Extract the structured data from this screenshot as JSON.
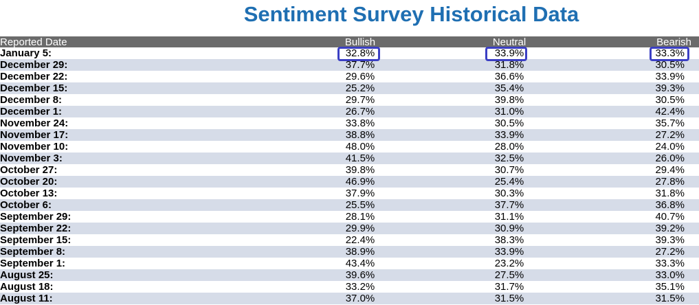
{
  "title": "Sentiment Survey Historical Data",
  "colors": {
    "title": "#1f6fb2",
    "header_bg": "#6b6b6b",
    "row_alt": "#d6dce8",
    "highlight": "#3b3fc4"
  },
  "table": {
    "headers": {
      "date": "Reported Date",
      "bullish": "Bullish",
      "neutral": "Neutral",
      "bearish": "Bearish"
    },
    "rows": [
      {
        "date": "January 5:",
        "bullish": "32.8%",
        "neutral": "33.9%",
        "bearish": "33.3%"
      },
      {
        "date": "December 29:",
        "bullish": "37.7%",
        "neutral": "31.8%",
        "bearish": "30.5%"
      },
      {
        "date": "December 22:",
        "bullish": "29.6%",
        "neutral": "36.6%",
        "bearish": "33.9%"
      },
      {
        "date": "December 15:",
        "bullish": "25.2%",
        "neutral": "35.4%",
        "bearish": "39.3%"
      },
      {
        "date": "December 8:",
        "bullish": "29.7%",
        "neutral": "39.8%",
        "bearish": "30.5%"
      },
      {
        "date": "December 1:",
        "bullish": "26.7%",
        "neutral": "31.0%",
        "bearish": "42.4%"
      },
      {
        "date": "November 24:",
        "bullish": "33.8%",
        "neutral": "30.5%",
        "bearish": "35.7%"
      },
      {
        "date": "November 17:",
        "bullish": "38.8%",
        "neutral": "33.9%",
        "bearish": "27.2%"
      },
      {
        "date": "November 10:",
        "bullish": "48.0%",
        "neutral": "28.0%",
        "bearish": "24.0%"
      },
      {
        "date": "November 3:",
        "bullish": "41.5%",
        "neutral": "32.5%",
        "bearish": "26.0%"
      },
      {
        "date": "October 27:",
        "bullish": "39.8%",
        "neutral": "30.7%",
        "bearish": "29.4%"
      },
      {
        "date": "October 20:",
        "bullish": "46.9%",
        "neutral": "25.4%",
        "bearish": "27.8%"
      },
      {
        "date": "October 13:",
        "bullish": "37.9%",
        "neutral": "30.3%",
        "bearish": "31.8%"
      },
      {
        "date": "October 6:",
        "bullish": "25.5%",
        "neutral": "37.7%",
        "bearish": "36.8%"
      },
      {
        "date": "September 29:",
        "bullish": "28.1%",
        "neutral": "31.1%",
        "bearish": "40.7%"
      },
      {
        "date": "September 22:",
        "bullish": "29.9%",
        "neutral": "30.9%",
        "bearish": "39.2%"
      },
      {
        "date": "September 15:",
        "bullish": "22.4%",
        "neutral": "38.3%",
        "bearish": "39.3%"
      },
      {
        "date": "September 8:",
        "bullish": "38.9%",
        "neutral": "33.9%",
        "bearish": "27.2%"
      },
      {
        "date": "September 1:",
        "bullish": "43.4%",
        "neutral": "23.2%",
        "bearish": "33.3%"
      },
      {
        "date": "August 25:",
        "bullish": "39.6%",
        "neutral": "27.5%",
        "bearish": "33.0%"
      },
      {
        "date": "August 18:",
        "bullish": "33.2%",
        "neutral": "31.7%",
        "bearish": "35.1%"
      },
      {
        "date": "August 11:",
        "bullish": "37.0%",
        "neutral": "31.5%",
        "bearish": "31.5%"
      }
    ]
  }
}
